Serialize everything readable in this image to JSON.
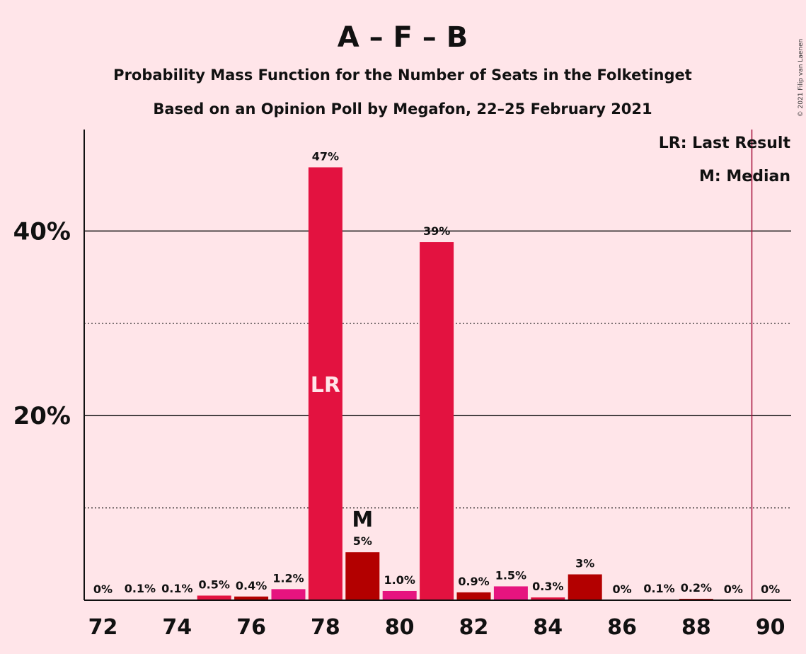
{
  "chart_data": {
    "type": "bar",
    "title": "A – F – B",
    "subtitle_lines": [
      "Probability Mass Function for the Number of Seats in the Folketinget",
      "Based on an Opinion Poll by Megafon, 22–25 February 2021"
    ],
    "copyright": "© 2021 Filip van Laenen",
    "legend": {
      "placement": "top-right",
      "items": [
        "LR: Last Result",
        "M: Median"
      ]
    },
    "x": [
      72,
      73,
      74,
      75,
      76,
      77,
      78,
      79,
      80,
      81,
      82,
      83,
      84,
      85,
      86,
      87,
      88,
      89,
      90
    ],
    "x_tick_labels": [
      "72",
      "74",
      "76",
      "78",
      "80",
      "82",
      "84",
      "86",
      "88",
      "90"
    ],
    "values": [
      0,
      0.1,
      0.1,
      0.5,
      0.4,
      1.2,
      47,
      5,
      1.0,
      39,
      0.9,
      1.5,
      0.3,
      3,
      0,
      0.1,
      0.2,
      0,
      0
    ],
    "plotted_values": [
      0,
      0.06,
      0.06,
      0.5,
      0.4,
      1.2,
      46.9,
      5.2,
      1.0,
      38.8,
      0.85,
      1.5,
      0.3,
      2.8,
      0,
      0.06,
      0.15,
      0,
      0
    ],
    "data_labels": [
      "0%",
      "0.1%",
      "0.1%",
      "0.5%",
      "0.4%",
      "1.2%",
      "47%",
      "5%",
      "1.0%",
      "39%",
      "0.9%",
      "1.5%",
      "0.3%",
      "3%",
      "0%",
      "0.1%",
      "0.2%",
      "0%",
      "0%"
    ],
    "bar_colors": [
      "#E31240",
      "#E31240",
      "#E31240",
      "#E31240",
      "#B30000",
      "#E6147F",
      "#E31240",
      "#B30000",
      "#E6147F",
      "#E31240",
      "#B30000",
      "#E6147F",
      "#E31240",
      "#B30000",
      "#E6147F",
      "#E31240",
      "#B30000",
      "#E6147F",
      "#E31240"
    ],
    "y_tick_labels": [
      {
        "value": 20,
        "label": "20%"
      },
      {
        "value": 40,
        "label": "40%"
      }
    ],
    "ylim": [
      0,
      51
    ],
    "grid": {
      "solid": [
        20,
        40
      ],
      "dotted": [
        10,
        30
      ]
    },
    "annotations": [
      {
        "text": "LR",
        "x": 78,
        "position": "inside-bar",
        "color": "#FFE5E9"
      },
      {
        "text": "M",
        "x": 79,
        "position": "above-bar",
        "color": "#111111"
      }
    ],
    "majority_line": {
      "x": 89.5,
      "color": "#A50F3A"
    },
    "xlabel": "",
    "ylabel": ""
  }
}
